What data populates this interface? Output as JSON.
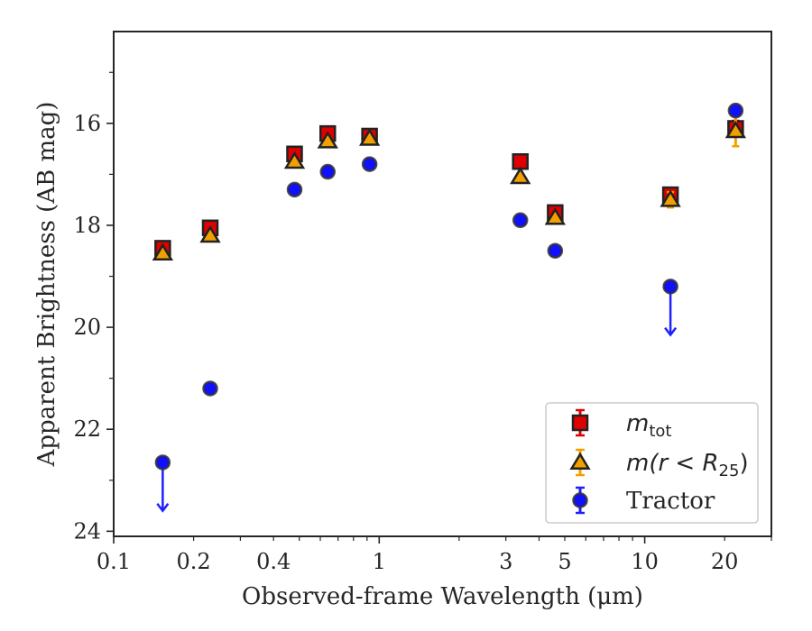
{
  "chart_data": {
    "type": "scatter",
    "title": "",
    "xlabel": "Observed-frame Wavelength (μm)",
    "ylabel": "Apparent Brightness (AB mag)",
    "xscale": "log",
    "xlim": [
      0.1,
      30
    ],
    "ylim": [
      24.1,
      14.2
    ],
    "y_inverted": true,
    "x_ticks": [
      {
        "value": 0.1,
        "label": "0.1"
      },
      {
        "value": 0.2,
        "label": "0.2"
      },
      {
        "value": 0.4,
        "label": "0.4"
      },
      {
        "value": 1,
        "label": "1"
      },
      {
        "value": 3,
        "label": "3"
      },
      {
        "value": 5,
        "label": "5"
      },
      {
        "value": 10,
        "label": "10"
      },
      {
        "value": 20,
        "label": "20"
      }
    ],
    "y_ticks": [
      16,
      18,
      20,
      22,
      24
    ],
    "legend_position": "lower-right",
    "series": [
      {
        "name": "m_tot",
        "marker": "square",
        "color": "#e00000",
        "errcolor": "#e00000",
        "x": [
          0.153,
          0.231,
          0.48,
          0.64,
          0.92,
          3.4,
          4.6,
          12.5,
          22
        ],
        "y": [
          18.45,
          18.05,
          16.6,
          16.2,
          16.25,
          16.75,
          17.75,
          17.4,
          16.1
        ],
        "err": [
          0.05,
          0.05,
          0.03,
          0.03,
          0.03,
          0.03,
          0.05,
          0.1,
          0.15
        ]
      },
      {
        "name": "m(r < R25)",
        "marker": "triangle",
        "color": "#f2a000",
        "errcolor": "#f2a000",
        "x": [
          0.153,
          0.231,
          0.48,
          0.64,
          0.92,
          3.4,
          4.6,
          12.5,
          22
        ],
        "y": [
          18.55,
          18.2,
          16.75,
          16.35,
          16.3,
          17.05,
          17.85,
          17.5,
          16.15
        ],
        "err": [
          0.05,
          0.05,
          0.03,
          0.03,
          0.03,
          0.03,
          0.05,
          0.15,
          0.3
        ]
      },
      {
        "name": "Tractor",
        "marker": "circle",
        "color": "#1010ff",
        "errcolor": "#2020ff",
        "x": [
          0.153,
          0.231,
          0.48,
          0.64,
          0.92,
          3.4,
          4.6,
          12.5,
          22
        ],
        "y": [
          22.65,
          21.2,
          17.3,
          16.95,
          16.8,
          17.9,
          18.5,
          19.2,
          15.75
        ],
        "err": [
          0.05,
          0.05,
          0.05,
          0.05,
          0.05,
          0.05,
          0.05,
          0.05,
          0.05
        ],
        "upper_limit": [
          true,
          false,
          false,
          false,
          false,
          false,
          false,
          true,
          false
        ]
      }
    ],
    "legend": {
      "entries": [
        {
          "base": "m",
          "sub": "tot",
          "series": 0
        },
        {
          "text": "m(r < R",
          "sub": "25",
          "tail": ")",
          "series": 1
        },
        {
          "text": "Tractor",
          "series": 2
        }
      ]
    }
  }
}
